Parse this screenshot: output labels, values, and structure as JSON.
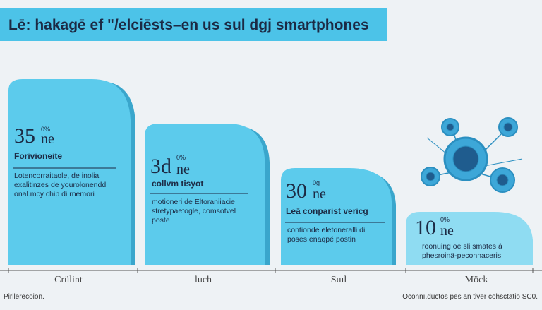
{
  "title": "Lē: hakagē ef ʺ/elciēsts–en us sul dgj smartphones",
  "cards": [
    {
      "value": "35",
      "sup": "0%",
      "unit": "ne",
      "heading": "Forivioneite",
      "lines": [
        "Lotencorraitaole, de inolia",
        "exalitinzes de yourolonendd",
        "onal.mcy chip di rnemori"
      ]
    },
    {
      "value": "3d",
      "sup": "0%",
      "unit": "ne",
      "heading": "collvm tisyot",
      "lines": [
        "motioneri de Eltoraniiacie",
        "stretypaetogle, comsotvel",
        "poste"
      ]
    },
    {
      "value": "30",
      "sup": "0g",
      "unit": "ne",
      "heading": "Leā conparist vericg",
      "lines": [
        "contionde eletoneralli di",
        "poses enaqpé postin"
      ]
    },
    {
      "value": "10",
      "sup": "0%",
      "unit": "ne",
      "lines": [
        "roonuing oe sli smātes â",
        "phesroinä-peconnaceris"
      ]
    }
  ],
  "axis_labels": [
    "Crülint",
    "luch",
    "Suıl",
    "Möck"
  ],
  "footer": {
    "left": "Pirllerecoion.",
    "right": "Oconnı.ductos pes an tiver cohsctatio SC0."
  }
}
